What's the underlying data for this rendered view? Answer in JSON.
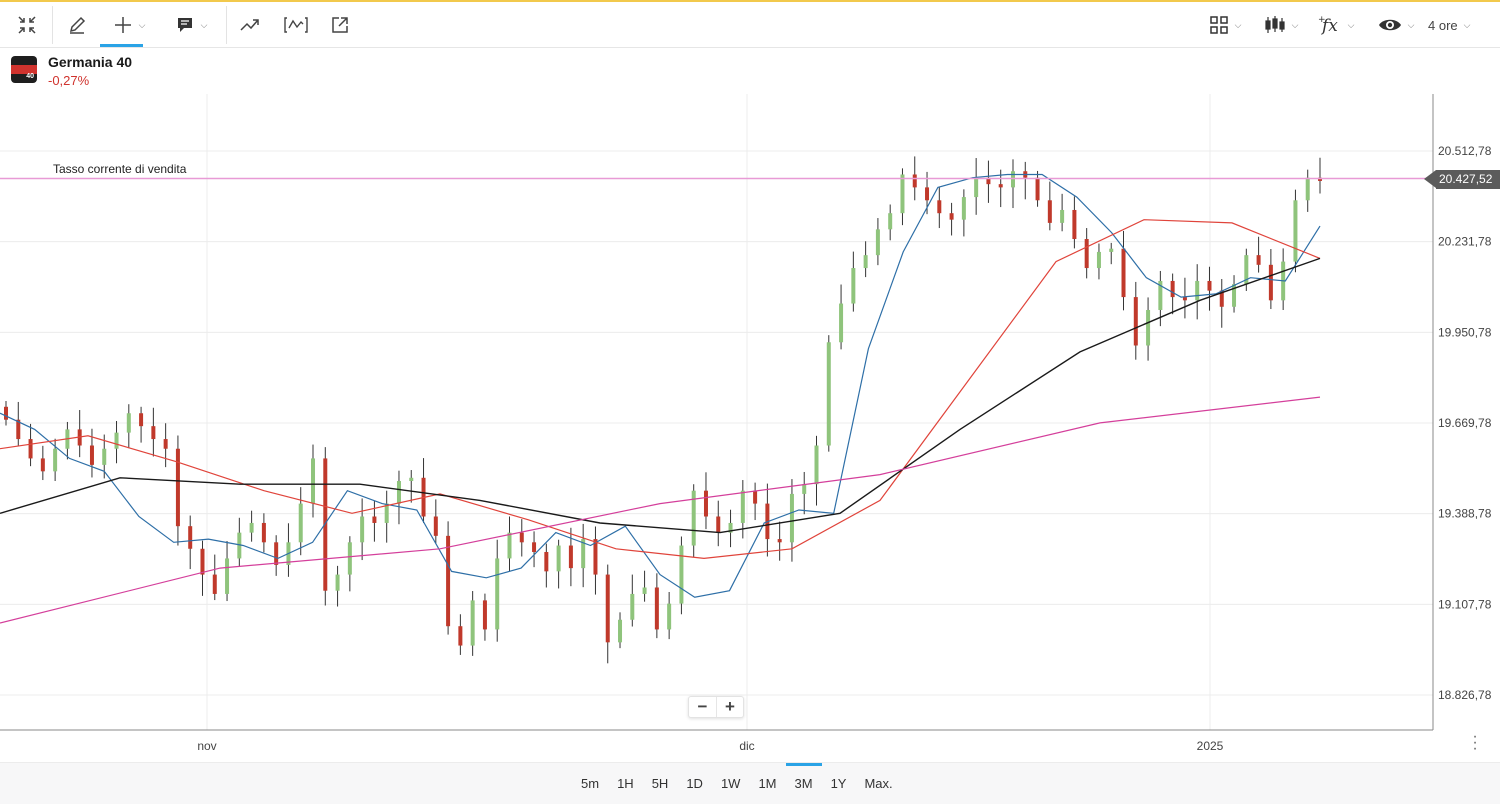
{
  "toolbar": {
    "items": [
      "collapse-icon",
      "pencil-icon",
      "crosshair-icon",
      "comment-icon",
      "trend-icon",
      "wave-indicator-icon",
      "share-icon"
    ],
    "right_items": [
      "layout-grid-icon",
      "candlestick-icon",
      "fx-icon",
      "eye-icon"
    ],
    "timeframe": "4 ore"
  },
  "instrument": {
    "name": "Germania 40",
    "change": "-0,27%",
    "flag_badge": "40"
  },
  "chart": {
    "sell_label": "Tasso corrente di vendita",
    "current_price": "20.427,52",
    "y_ticks": [
      "20.512,78",
      "20.231,78",
      "19.950,78",
      "19.669,78",
      "19.388,78",
      "19.107,78",
      "18.826,78"
    ],
    "x_ticks": [
      "nov",
      "dic",
      "2025"
    ],
    "colors": {
      "up": "#8fc47c",
      "down": "#c0392b",
      "ma_fast": "#2e6fa7",
      "ma_mid": "#e0443b",
      "ma_slow": "#1a1a1a",
      "ma_long": "#d43f9b",
      "sell_line": "#e89ad6"
    }
  },
  "chart_data": {
    "type": "candlestick",
    "timeframe": "4 ore",
    "y_ticks": [
      20512.78,
      20231.78,
      19950.78,
      19669.78,
      19388.78,
      19107.78,
      18826.78
    ],
    "current_price": 20427.52,
    "sell_line_value": 20427.52,
    "x_labels": [
      "nov",
      "dic",
      "2025"
    ],
    "close_approx": [
      19680,
      19620,
      19560,
      19520,
      19590,
      19650,
      19600,
      19540,
      19590,
      19640,
      19700,
      19660,
      19620,
      19590,
      19350,
      19280,
      19200,
      19140,
      19250,
      19330,
      19360,
      19300,
      19230,
      19300,
      19420,
      19560,
      19150,
      19200,
      19300,
      19380,
      19360,
      19420,
      19490,
      19500,
      19380,
      19320,
      19040,
      18980,
      19120,
      19030,
      19250,
      19330,
      19300,
      19270,
      19210,
      19290,
      19220,
      19310,
      19200,
      18990,
      19060,
      19140,
      19160,
      19030,
      19110,
      19290,
      19460,
      19380,
      19330,
      19360,
      19460,
      19420,
      19310,
      19300,
      19450,
      19480,
      19600,
      19920,
      20040,
      20150,
      20190,
      20270,
      20320,
      20440,
      20400,
      20360,
      20320,
      20300,
      20370,
      20430,
      20410,
      20400,
      20450,
      20430,
      20360,
      20290,
      20330,
      20240,
      20150,
      20200,
      20210,
      20060,
      19910,
      20020,
      20110,
      20060,
      20050,
      20110,
      20080,
      20030,
      20100,
      20190,
      20160,
      20050,
      20170,
      20360,
      20430,
      20420
    ],
    "series": [
      {
        "name": "",
        "values_approx": [
          19700,
          19650,
          19560,
          19520,
          19380,
          19300,
          19310,
          19290,
          19250,
          19300,
          19460,
          19420,
          19400,
          19210,
          19190,
          19220,
          19330,
          19290,
          19350,
          19200,
          19130,
          19150,
          19360,
          19400,
          19390,
          19900,
          20200,
          20400,
          20430,
          20440,
          20440,
          20370,
          20260,
          20120,
          20060,
          20070,
          20120,
          20110,
          20280
        ]
      },
      {
        "name": "",
        "values_approx": [
          19590,
          19630,
          19550,
          19460,
          19390,
          19450,
          19370,
          19280,
          19250,
          19280,
          19430,
          19800,
          20170,
          20300,
          20290,
          20180
        ]
      },
      {
        "name": "",
        "values_approx": [
          19390,
          19500,
          19480,
          19480,
          19430,
          19360,
          19330,
          19390,
          19650,
          19890,
          20050,
          20180
        ]
      },
      {
        "name": "",
        "values_approx": [
          19050,
          19220,
          19280,
          19420,
          19510,
          19670,
          19750
        ]
      }
    ]
  },
  "zoom": {
    "minus": "−",
    "plus": "+"
  },
  "periods": {
    "items": [
      "5m",
      "1H",
      "5H",
      "1D",
      "1W",
      "1M",
      "3M",
      "1Y",
      "Max."
    ],
    "active": "3M"
  }
}
